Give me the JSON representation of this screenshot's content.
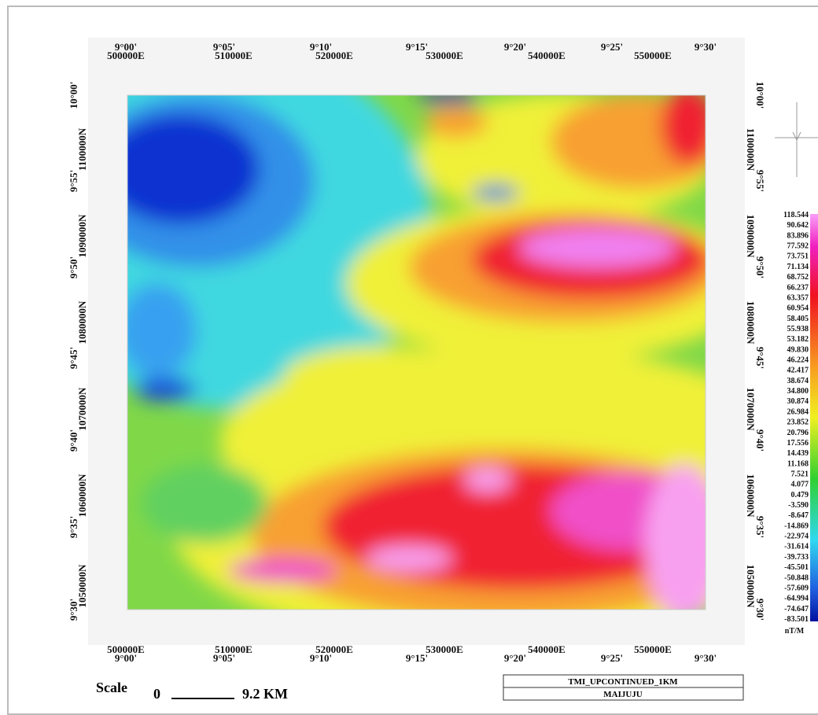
{
  "map": {
    "top_degrees": [
      "9°00'",
      "9°05'",
      "9°10'",
      "9°15'",
      "9°20'",
      "9°25'",
      "9°30'"
    ],
    "top_eastings": [
      "500000E",
      "510000E",
      "520000E",
      "530000E",
      "540000E",
      "550000E"
    ],
    "bottom_eastings": [
      "500000E",
      "510000E",
      "520000E",
      "530000E",
      "540000E",
      "550000E"
    ],
    "bottom_degrees": [
      "9°00'",
      "9°05'",
      "9°10'",
      "9°15'",
      "9°20'",
      "9°25'",
      "9°30'"
    ],
    "left_degrees": [
      "10°00'",
      "9°55'",
      "9°50'",
      "9°45'",
      "9°40'",
      "9°35'",
      "9°30'"
    ],
    "left_northings": [
      "1100000N",
      "1090000N",
      "1080000N",
      "1070000N",
      "1060000N",
      "1050000N"
    ],
    "right_degrees": [
      "10°00'",
      "9°55'",
      "9°50'",
      "9°45'",
      "9°40'",
      "9°35'",
      "9°30'"
    ],
    "right_northings": [
      "1100000N",
      "1090000N",
      "1080000N",
      "1070000N",
      "1060000N",
      "1050000N"
    ]
  },
  "legend": {
    "values": [
      "118.544",
      "90.642",
      "83.896",
      "77.592",
      "73.751",
      "71.134",
      "68.752",
      "66.237",
      "63.357",
      "60.954",
      "58.405",
      "55.938",
      "53.182",
      "49.830",
      "46.224",
      "42.417",
      "38.674",
      "34.800",
      "30.874",
      "26.984",
      "23.852",
      "20.796",
      "17.556",
      "14.439",
      "11.168",
      "7.521",
      "4.077",
      "0.479",
      "-3.590",
      "-8.647",
      "-14.869",
      "-22.974",
      "-31.614",
      "-39.733",
      "-45.501",
      "-50.848",
      "-57.609",
      "-64.994",
      "-74.647",
      "-83.501"
    ],
    "unit": "nT/M"
  },
  "scale": {
    "label": "Scale",
    "start": "0",
    "end": "9.2 KM"
  },
  "title_box": {
    "title": "TMI_UPCONTINUED_1KM",
    "location": "MAIJUJU"
  }
}
